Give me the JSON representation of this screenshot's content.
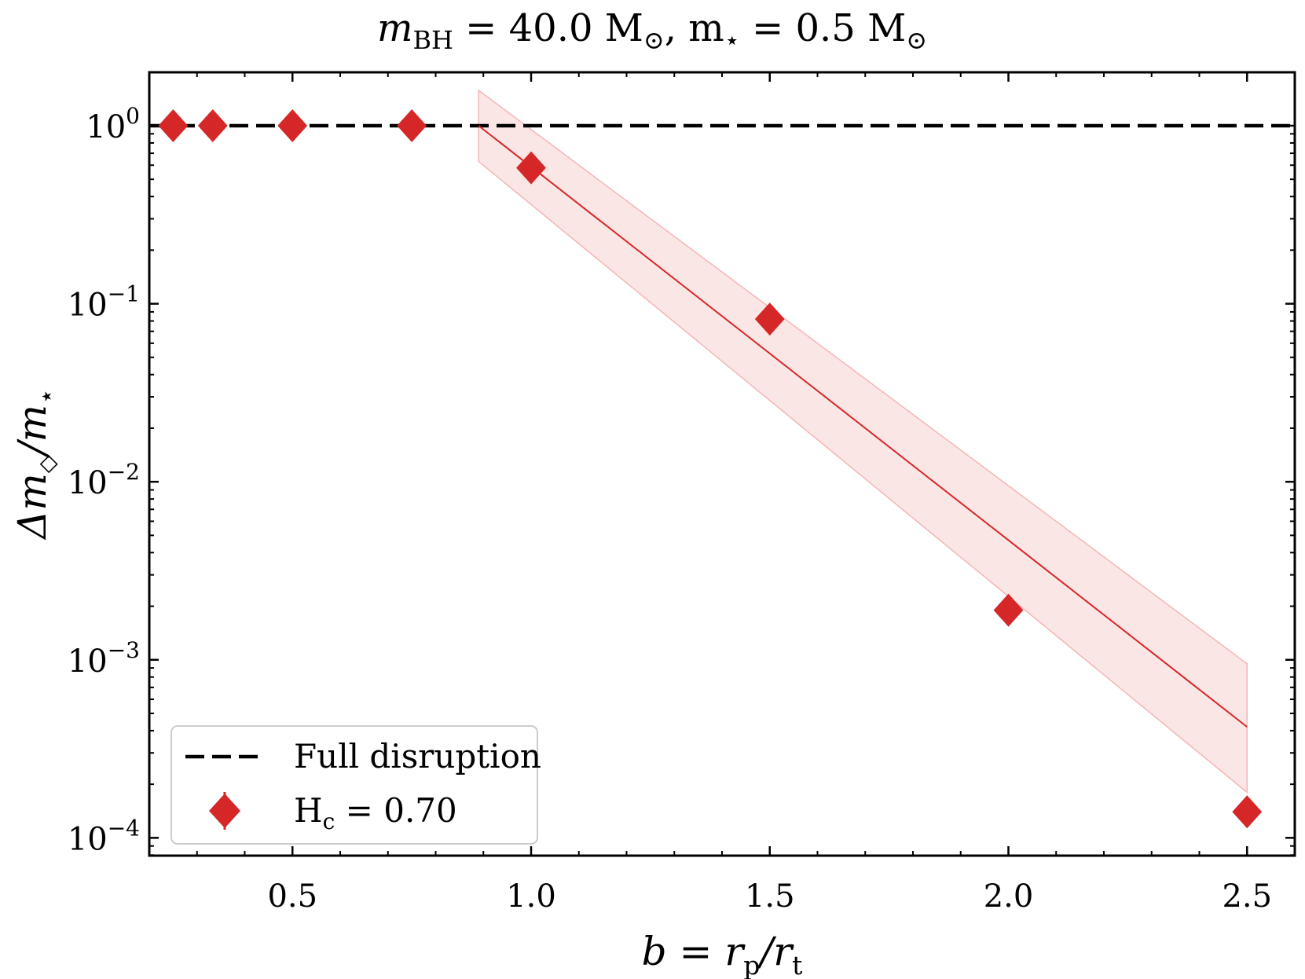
{
  "chart_data": {
    "type": "scatter",
    "title": "m_BH = 40.0 M_⊙, m_⋆ = 0.5 M_⊙",
    "title_parts": {
      "a": "m",
      "a_sub": "BH",
      "b": " = 40.0 M",
      "b_sub": "⊙",
      "c": ", m",
      "c_sub": "⋆",
      "d": " = 0.5 M",
      "d_sub": "⊙"
    },
    "xlabel": "b = r_p/r_t",
    "xlabel_parts": {
      "a": "b = r",
      "a_sub": "p",
      "b": "/r",
      "b_sub": "t"
    },
    "ylabel": "Δm_◇/m_⋆",
    "ylabel_parts": {
      "a": "Δm",
      "a_sub": "◇",
      "b": "/m",
      "b_sub": "⋆"
    },
    "xlim": [
      0.2,
      2.6
    ],
    "ylim_log10": [
      -4.1,
      0.3
    ],
    "yscale": "log",
    "xticks": [
      0.5,
      1.0,
      1.5,
      2.0,
      2.5
    ],
    "xtick_labels": [
      "0.5",
      "1.0",
      "1.5",
      "2.0",
      "2.5"
    ],
    "yticks_log10": [
      0,
      -1,
      -2,
      -3,
      -4
    ],
    "ytick_labels": [
      {
        "base": "10",
        "exp": "0"
      },
      {
        "base": "10",
        "exp": "−1"
      },
      {
        "base": "10",
        "exp": "−2"
      },
      {
        "base": "10",
        "exp": "−3"
      },
      {
        "base": "10",
        "exp": "−4"
      }
    ],
    "series": [
      {
        "name": "Full disruption",
        "kind": "hline",
        "y": 1.0,
        "color": "#000000",
        "style": "dashed"
      },
      {
        "name": "H_c = 0.70",
        "kind": "scatter",
        "marker": "diamond",
        "color": "#d62728",
        "x": [
          0.25,
          0.333,
          0.5,
          0.75,
          1.0,
          1.5,
          2.0,
          2.5
        ],
        "y": [
          1.0,
          1.0,
          1.0,
          1.0,
          0.58,
          0.082,
          0.0019,
          0.00014
        ]
      },
      {
        "name": "fit",
        "kind": "line",
        "color": "#d62728",
        "x": [
          0.89,
          2.5
        ],
        "y": [
          1.0,
          0.00042
        ]
      },
      {
        "name": "fit uncertainty band",
        "kind": "band",
        "color": "#f9d5d5",
        "x": [
          0.89,
          2.5
        ],
        "y_upper": [
          1.58,
          0.00095
        ],
        "y_lower": [
          0.63,
          0.00018
        ]
      }
    ],
    "legend": {
      "position": "lower-left",
      "entries": [
        {
          "label": "Full disruption",
          "style": "dashed-line"
        },
        {
          "label_main": "H",
          "label_sub": "c",
          "label_rest": " = 0.70",
          "style": "red-diamond-errorbar"
        }
      ]
    }
  }
}
